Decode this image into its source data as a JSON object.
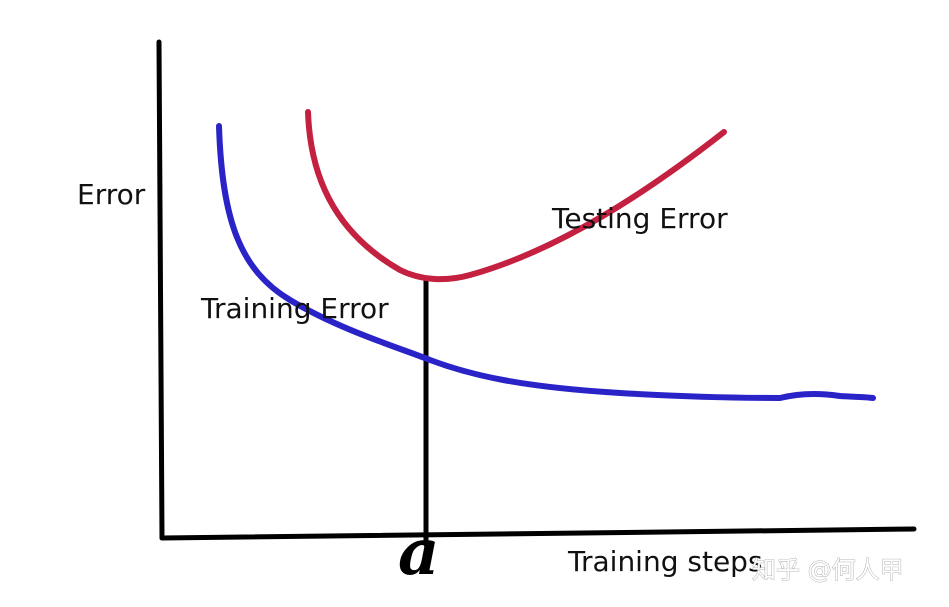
{
  "diagram": {
    "y_axis_label": "Error",
    "x_axis_label": "Training steps",
    "marker_label": "a",
    "curves": [
      {
        "name": "Testing Error",
        "color": "#c4203f",
        "shape": "u-shaped, minimum at a"
      },
      {
        "name": "Training Error",
        "color": "#2a24c8",
        "shape": "monotonically decreasing"
      }
    ]
  },
  "watermark": {
    "text": "知乎 @何人甲"
  },
  "colors": {
    "axis": "#000000",
    "testing": "#c4203f",
    "training": "#2a24c8"
  }
}
